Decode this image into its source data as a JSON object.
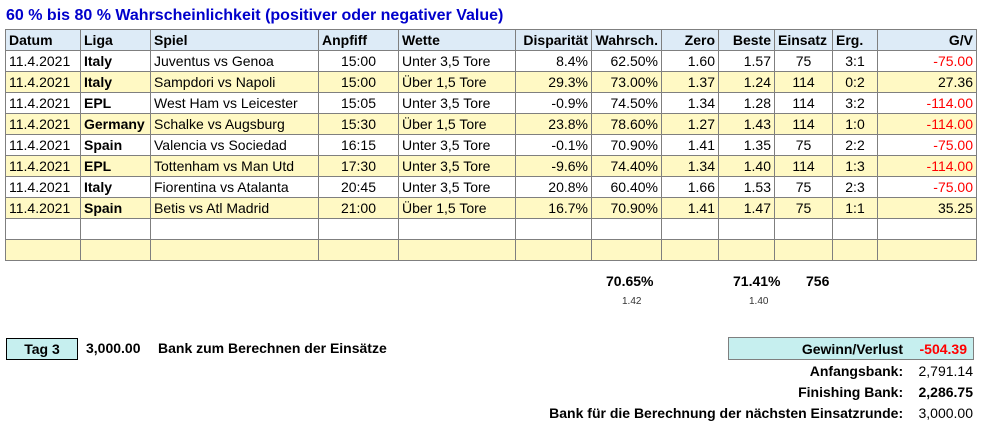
{
  "title": "60 % bis 80 % Wahrscheinlichkeit (positiver oder negativer Value)",
  "headers": [
    "Datum",
    "Liga",
    "Spiel",
    "Anpfiff",
    "Wette",
    "Disparität",
    "Wahrsch.",
    "Zero",
    "Beste",
    "Einsatz",
    "Erg.",
    "G/V"
  ],
  "rows": [
    [
      "11.4.2021",
      "Italy",
      "Juventus vs Genoa",
      "15:00",
      "Unter 3,5 Tore",
      "8.4%",
      "62.50%",
      "1.60",
      "1.57",
      "75",
      "3:1",
      "-75.00"
    ],
    [
      "11.4.2021",
      "Italy",
      "Sampdori vs Napoli",
      "15:00",
      "Über 1,5 Tore",
      "29.3%",
      "73.00%",
      "1.37",
      "1.24",
      "114",
      "0:2",
      "27.36"
    ],
    [
      "11.4.2021",
      "EPL",
      "West Ham vs Leicester",
      "15:05",
      "Unter 3,5 Tore",
      "-0.9%",
      "74.50%",
      "1.34",
      "1.28",
      "114",
      "3:2",
      "-114.00"
    ],
    [
      "11.4.2021",
      "Germany",
      "Schalke vs Augsburg",
      "15:30",
      "Über 1,5 Tore",
      "23.8%",
      "78.60%",
      "1.27",
      "1.43",
      "114",
      "1:0",
      "-114.00"
    ],
    [
      "11.4.2021",
      "Spain",
      "Valencia vs Sociedad",
      "16:15",
      "Unter 3,5 Tore",
      "-0.1%",
      "70.90%",
      "1.41",
      "1.35",
      "75",
      "2:2",
      "-75.00"
    ],
    [
      "11.4.2021",
      "EPL",
      "Tottenham vs Man Utd",
      "17:30",
      "Unter 3,5 Tore",
      "-9.6%",
      "74.40%",
      "1.34",
      "1.40",
      "114",
      "1:3",
      "-114.00"
    ],
    [
      "11.4.2021",
      "Italy",
      "Fiorentina vs Atalanta",
      "20:45",
      "Unter 3,5 Tore",
      "20.8%",
      "60.40%",
      "1.66",
      "1.53",
      "75",
      "2:3",
      "-75.00"
    ],
    [
      "11.4.2021",
      "Spain",
      "Betis vs Atl Madrid",
      "21:00",
      "Über 1,5 Tore",
      "16.7%",
      "70.90%",
      "1.41",
      "1.47",
      "75",
      "1:1",
      "35.25"
    ],
    [
      "",
      "",
      "",
      "",
      "",
      "",
      "",
      "",
      "",
      "",
      "",
      ""
    ],
    [
      "",
      "",
      "",
      "",
      "",
      "",
      "",
      "",
      "",
      "",
      "",
      ""
    ]
  ],
  "totals": {
    "wahrsch_avg": "70.65%",
    "zero_avg": "1.42",
    "beste_avg": "71.41%",
    "beste_sub": "1.40",
    "einsatz_sum": "756"
  },
  "bank": {
    "tag_label": "Tag 3",
    "amount": "3,000.00",
    "label": "Bank zum Berechnen der Einsätze"
  },
  "summary": {
    "gv_label": "Gewinn/Verlust",
    "gv_value": "-504.39",
    "start_label": "Anfangsbank:",
    "start_value": "2,791.14",
    "finish_label": "Finishing Bank:",
    "finish_value": "2,286.75",
    "next_label": "Bank für die Berechnung der nächsten Einsatzrunde:",
    "next_value": "3,000.00"
  },
  "colors": {
    "title": "#0000cc",
    "header_bg": "#ddebf7",
    "row_alt_bg": "#fff9c4",
    "box_bg": "#c6efef",
    "negative": "#ff0000"
  }
}
